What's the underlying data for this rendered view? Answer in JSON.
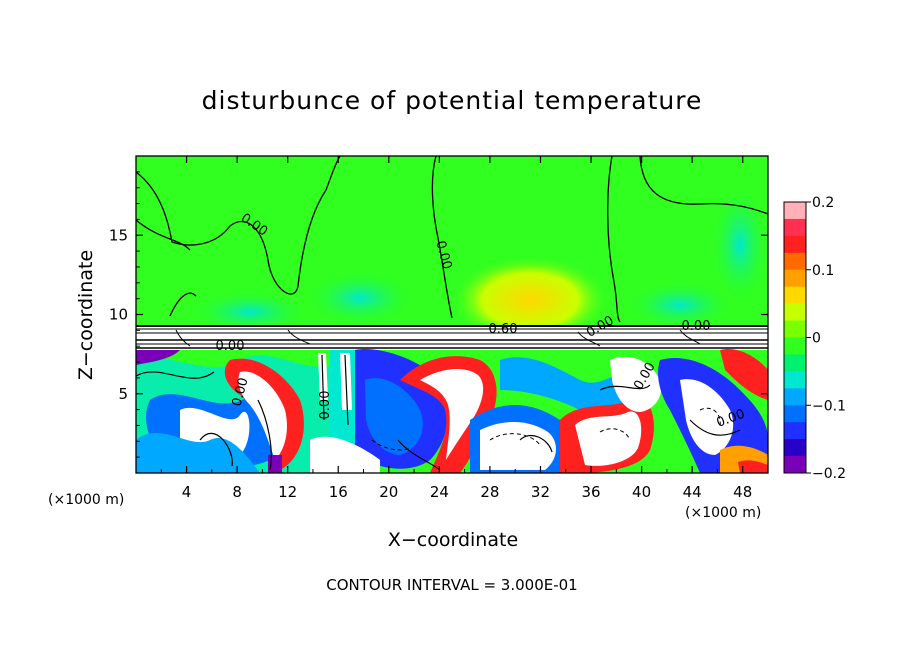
{
  "title": "disturbunce of potential temperature",
  "footer": "CONTOUR INTERVAL = 3.000E-01",
  "chart_data": {
    "type": "heatmap",
    "title": "disturbunce of potential temperature",
    "xlabel": "X−coordinate",
    "ylabel": "Z−coordinate",
    "x_unit": "(×1000 m)",
    "y_unit": "(×1000 m)",
    "xlim": [
      0,
      50
    ],
    "ylim": [
      0,
      20
    ],
    "xticks": [
      4,
      8,
      12,
      16,
      20,
      24,
      28,
      32,
      36,
      40,
      44,
      48
    ],
    "xtick_labels": [
      "4",
      "8",
      "12",
      "16",
      "20",
      "24",
      "28",
      "32",
      "36",
      "40",
      "44",
      "48"
    ],
    "yticks": [
      5,
      10,
      15
    ],
    "ytick_labels": [
      "5",
      "10",
      "15"
    ],
    "colorbar": {
      "min": -0.2,
      "max": 0.2,
      "ticks": [
        0.2,
        0.1,
        0,
        -0.1,
        -0.2
      ],
      "tick_labels": [
        "0.2",
        "0.1",
        "0",
        "−0.1",
        "−0.2"
      ],
      "colors": [
        "#ffb0b8",
        "#ff3050",
        "#ff2020",
        "#ff6a00",
        "#ffa000",
        "#ffd800",
        "#c8ff00",
        "#78ff00",
        "#30ff20",
        "#00f070",
        "#00e8d0",
        "#00a8ff",
        "#0070ff",
        "#2030ff",
        "#2800c8",
        "#7a00b8"
      ]
    },
    "contour_labels": [
      "0.00",
      "0.00",
      "0.00",
      "0.00",
      "0.00",
      "0.00",
      "0.60",
      "0.00",
      "0.00",
      "0.00"
    ],
    "contour_interval": "3.000E−01",
    "grid": false
  }
}
